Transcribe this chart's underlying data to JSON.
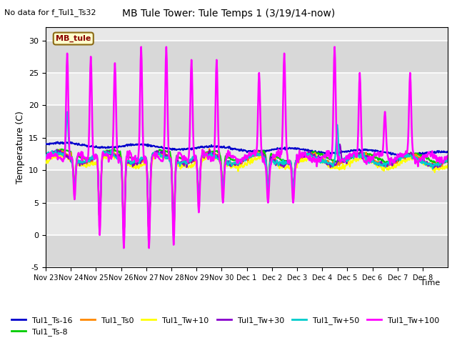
{
  "title": "MB Tule Tower: Tule Temps 1 (3/19/14-now)",
  "no_data_text": "No data for f_Tul1_Ts32",
  "xlabel": "Time",
  "ylabel": "Temperature (C)",
  "ylim": [
    -5,
    32
  ],
  "yticks": [
    -5,
    0,
    5,
    10,
    15,
    20,
    25,
    30
  ],
  "bg_color": "#ffffff",
  "plot_bg_color": "#e8e8e8",
  "series_colors": {
    "Tul1_Ts-16": "#0000cc",
    "Tul1_Ts-8": "#00cc00",
    "Tul1_Ts0": "#ff8800",
    "Tul1_Tw+10": "#ffff00",
    "Tul1_Tw+30": "#8800cc",
    "Tul1_Tw+50": "#00cccc",
    "Tul1_Tw+100": "#ff00ff"
  },
  "x_tick_labels": [
    "Nov 23",
    "Nov 24",
    "Nov 25",
    "Nov 26",
    "Nov 27",
    "Nov 28",
    "Nov 29",
    "Nov 30",
    "Dec 1",
    "Dec 2",
    "Dec 3",
    "Dec 4",
    "Dec 5",
    "Dec 6",
    "Dec 7",
    "Dec 8"
  ],
  "n_days": 16,
  "mb_tule_label": "MB_tule",
  "legend_order": [
    "Tul1_Ts-16",
    "Tul1_Ts-8",
    "Tul1_Ts0",
    "Tul1_Tw+10",
    "Tul1_Tw+30",
    "Tul1_Tw+50",
    "Tul1_Tw+100"
  ]
}
